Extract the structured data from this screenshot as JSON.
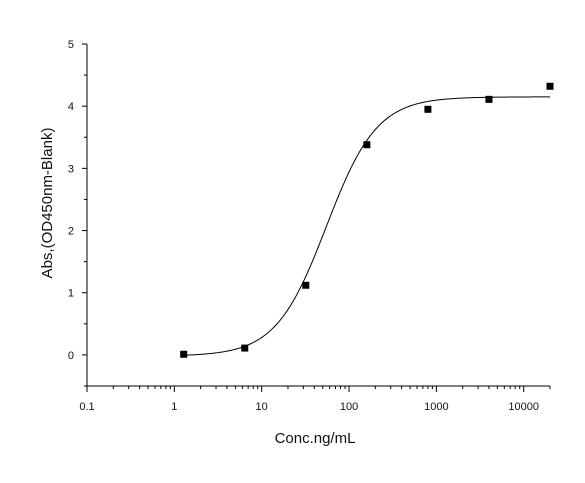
{
  "chart_data": {
    "type": "scatter",
    "title": "",
    "xlabel": "Conc.ng/mL",
    "ylabel": "Abs,(OD450nm-Blank)",
    "x_scale": "log",
    "xlim": [
      0.1,
      20000
    ],
    "ylim": [
      -0.5,
      5
    ],
    "x_ticks": [
      0.1,
      1,
      10,
      100,
      1000,
      10000
    ],
    "x_tick_labels": [
      "0.1",
      "1",
      "10",
      "100",
      "1000",
      "10000"
    ],
    "y_ticks": [
      0,
      1,
      2,
      3,
      4,
      5
    ],
    "y_tick_labels": [
      "0",
      "1",
      "2",
      "3",
      "4",
      "5"
    ],
    "grid": false,
    "legend": "none",
    "series": [
      {
        "x": [
          1.28,
          6.4,
          32,
          160,
          800,
          4000,
          20000
        ],
        "y": [
          0.01,
          0.11,
          1.12,
          3.38,
          3.95,
          4.11,
          4.32
        ],
        "marker": "square",
        "color": "#000000"
      }
    ],
    "fit_curve": {
      "model": "4PL",
      "bottom": -0.02,
      "top": 4.15,
      "ec50": 55,
      "hill": 1.5,
      "x_range": [
        1.28,
        20000
      ],
      "color": "#000000"
    }
  }
}
